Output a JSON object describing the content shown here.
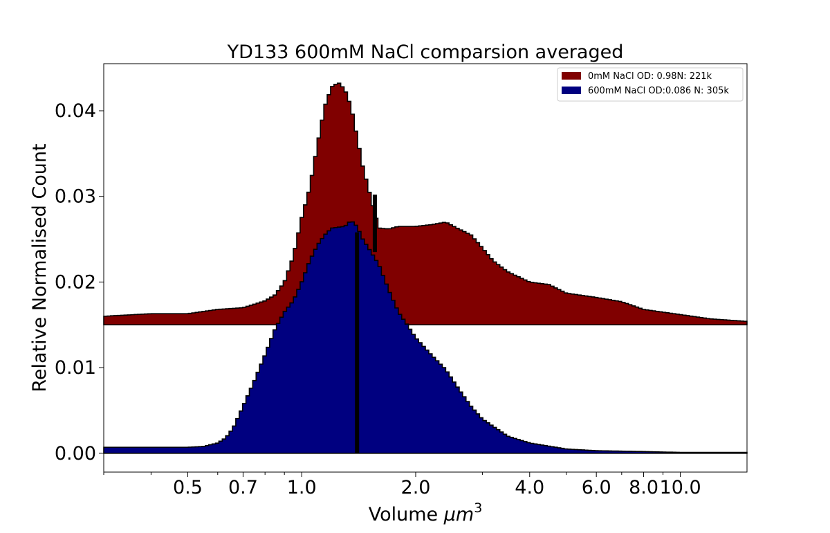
{
  "chart_data": {
    "type": "histogram",
    "title": "YD133 600mM NaCl comparsion averaged",
    "xlabel_text": "Volume ",
    "xlabel_math": "μm",
    "xlabel_sup": "3",
    "ylabel": "Relative Normalised Count",
    "xscale": "log",
    "xlim": [
      0.3,
      15.0
    ],
    "ylim": [
      -0.0022,
      0.0455
    ],
    "x_ticks": [
      {
        "value": 0.5,
        "label": "0.5"
      },
      {
        "value": 0.7,
        "label": "0.7"
      },
      {
        "value": 1.0,
        "label": "1.0"
      },
      {
        "value": 2.0,
        "label": "2.0"
      },
      {
        "value": 4.0,
        "label": "4.0"
      },
      {
        "value": 6.0,
        "label": "6.0"
      },
      {
        "value": 8.0,
        "label": "8.0"
      },
      {
        "value": 10.0,
        "label": "10.0"
      }
    ],
    "y_ticks": [
      {
        "value": 0.0,
        "label": "0.00"
      },
      {
        "value": 0.01,
        "label": "0.01"
      },
      {
        "value": 0.02,
        "label": "0.02"
      },
      {
        "value": 0.03,
        "label": "0.03"
      },
      {
        "value": 0.04,
        "label": "0.04"
      }
    ],
    "legend_position": "top-right",
    "series": [
      {
        "name": "0mM NaCl OD: 0.98N: 221k",
        "color": "#800000",
        "baseline": 0.015,
        "points": [
          [
            0.3,
            0.016
          ],
          [
            0.4,
            0.0163
          ],
          [
            0.5,
            0.0163
          ],
          [
            0.6,
            0.0168
          ],
          [
            0.7,
            0.017
          ],
          [
            0.8,
            0.0178
          ],
          [
            0.85,
            0.0185
          ],
          [
            0.9,
            0.02
          ],
          [
            0.95,
            0.023
          ],
          [
            1.0,
            0.0275
          ],
          [
            1.05,
            0.031
          ],
          [
            1.1,
            0.036
          ],
          [
            1.15,
            0.0405
          ],
          [
            1.2,
            0.0428
          ],
          [
            1.25,
            0.0433
          ],
          [
            1.3,
            0.0425
          ],
          [
            1.35,
            0.0405
          ],
          [
            1.4,
            0.037
          ],
          [
            1.45,
            0.0335
          ],
          [
            1.5,
            0.031
          ],
          [
            1.55,
            0.0285
          ],
          [
            1.6,
            0.0263
          ],
          [
            1.7,
            0.0262
          ],
          [
            1.8,
            0.0265
          ],
          [
            2.0,
            0.0265
          ],
          [
            2.2,
            0.0267
          ],
          [
            2.4,
            0.027
          ],
          [
            2.6,
            0.0262
          ],
          [
            2.8,
            0.0255
          ],
          [
            3.0,
            0.024
          ],
          [
            3.2,
            0.0225
          ],
          [
            3.5,
            0.0212
          ],
          [
            4.0,
            0.02
          ],
          [
            4.5,
            0.0197
          ],
          [
            5.0,
            0.0187
          ],
          [
            6.0,
            0.0182
          ],
          [
            7.0,
            0.0177
          ],
          [
            8.0,
            0.0168
          ],
          [
            10.0,
            0.0162
          ],
          [
            12.0,
            0.0157
          ],
          [
            15.0,
            0.0154
          ]
        ]
      },
      {
        "name": "600mM NaCl OD:0.086 N: 305k",
        "color": "#000080",
        "baseline": 0.0,
        "points": [
          [
            0.3,
            0.0007
          ],
          [
            0.4,
            0.0007
          ],
          [
            0.5,
            0.0007
          ],
          [
            0.55,
            0.0008
          ],
          [
            0.6,
            0.0012
          ],
          [
            0.63,
            0.0018
          ],
          [
            0.66,
            0.003
          ],
          [
            0.7,
            0.0055
          ],
          [
            0.75,
            0.0085
          ],
          [
            0.8,
            0.0115
          ],
          [
            0.85,
            0.0145
          ],
          [
            0.9,
            0.0165
          ],
          [
            0.95,
            0.0178
          ],
          [
            1.0,
            0.02
          ],
          [
            1.05,
            0.0225
          ],
          [
            1.1,
            0.0243
          ],
          [
            1.15,
            0.0255
          ],
          [
            1.2,
            0.0263
          ],
          [
            1.3,
            0.0265
          ],
          [
            1.35,
            0.0272
          ],
          [
            1.4,
            0.0265
          ],
          [
            1.45,
            0.025
          ],
          [
            1.5,
            0.024
          ],
          [
            1.6,
            0.022
          ],
          [
            1.7,
            0.019
          ],
          [
            1.8,
            0.0165
          ],
          [
            1.9,
            0.015
          ],
          [
            2.0,
            0.0135
          ],
          [
            2.2,
            0.0115
          ],
          [
            2.4,
            0.0098
          ],
          [
            2.6,
            0.0075
          ],
          [
            2.8,
            0.0055
          ],
          [
            3.0,
            0.004
          ],
          [
            3.5,
            0.002
          ],
          [
            4.0,
            0.0012
          ],
          [
            5.0,
            0.0005
          ],
          [
            6.0,
            0.0003
          ],
          [
            8.0,
            0.0002
          ],
          [
            10.0,
            0.0001
          ],
          [
            15.0,
            0.0001
          ]
        ]
      }
    ],
    "vlines": [
      {
        "x": 1.4,
        "ymin": 0.0,
        "ymax": 0.0258
      },
      {
        "x": 1.56,
        "ymin": 0.0235,
        "ymax": 0.0302
      }
    ]
  }
}
